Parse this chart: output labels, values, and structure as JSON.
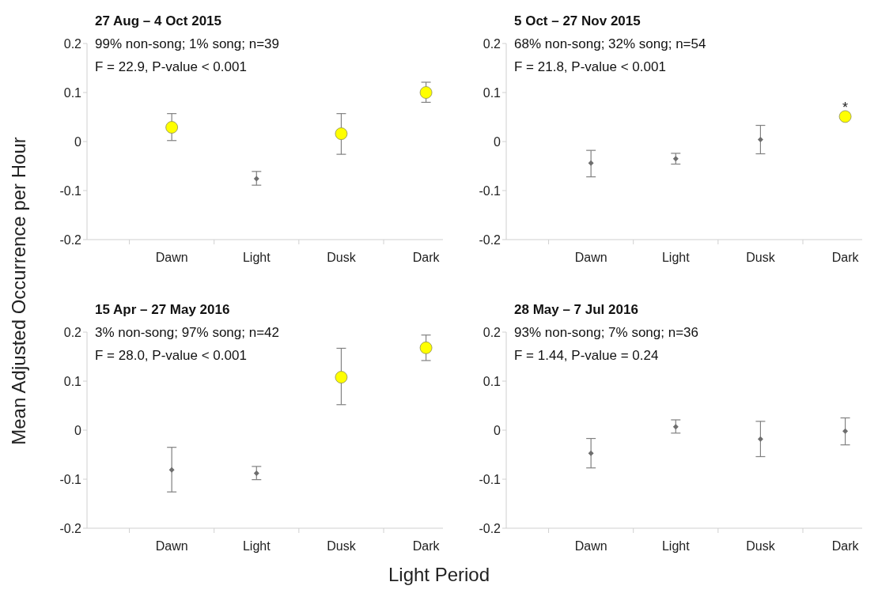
{
  "chart_data": [
    {
      "type": "scatter",
      "title": "27 Aug – 4 Oct 2015",
      "subtitle": "99% non-song; 1% song; n=39",
      "annotations": [
        "F = 22.9, P-value < 0.001"
      ],
      "ylabel": "Mean Adjusted Occurrence per Hour",
      "categories": [
        "Dawn",
        "Light",
        "Dusk",
        "Dark"
      ],
      "ylim": [
        -0.2,
        0.2
      ],
      "yticks": [
        -0.2,
        -0.1,
        0,
        0.1,
        0.2
      ],
      "grid": false,
      "legend": false,
      "series": [
        {
          "color": "#ffff00",
          "marker": "circle",
          "values": [
            0.029,
            null,
            0.016,
            0.1
          ],
          "errors": [
            [
              0.002,
              0.057
            ],
            null,
            [
              -0.026,
              0.057
            ],
            [
              0.08,
              0.121
            ]
          ]
        },
        {
          "color": "#6e6e6e",
          "marker": "diamond",
          "values": [
            null,
            -0.076,
            null,
            null
          ],
          "errors": [
            null,
            [
              -0.089,
              -0.061
            ],
            null,
            null
          ]
        }
      ]
    },
    {
      "type": "scatter",
      "title": "5 Oct – 27 Nov 2015",
      "subtitle": "68% non-song; 32% song; n=54",
      "annotations": [
        "F = 21.8, P-value < 0.001",
        {
          "text": "*",
          "x": "Dark",
          "y": 0.07
        }
      ],
      "categories": [
        "Dawn",
        "Light",
        "Dusk",
        "Dark"
      ],
      "ylim": [
        -0.2,
        0.2
      ],
      "yticks": [
        -0.2,
        -0.1,
        0,
        0.1,
        0.2
      ],
      "grid": false,
      "legend": false,
      "series": [
        {
          "color": "#ffff00",
          "marker": "circle",
          "values": [
            null,
            null,
            null,
            0.051
          ],
          "errors": [
            null,
            null,
            null,
            null
          ]
        },
        {
          "color": "#6e6e6e",
          "marker": "diamond",
          "values": [
            -0.044,
            -0.035,
            0.004,
            null
          ],
          "errors": [
            [
              -0.072,
              -0.018
            ],
            [
              -0.046,
              -0.024
            ],
            [
              -0.025,
              0.033
            ],
            null
          ]
        }
      ]
    },
    {
      "type": "scatter",
      "title": "15 Apr – 27 May 2016",
      "subtitle": "3% non-song; 97% song; n=42",
      "annotations": [
        "F = 28.0, P-value < 0.001"
      ],
      "xlabel": "Light Period",
      "categories": [
        "Dawn",
        "Light",
        "Dusk",
        "Dark"
      ],
      "ylim": [
        -0.2,
        0.2
      ],
      "yticks": [
        -0.2,
        -0.1,
        0,
        0.1,
        0.2
      ],
      "grid": false,
      "legend": false,
      "series": [
        {
          "color": "#ffff00",
          "marker": "circle",
          "values": [
            null,
            null,
            0.108,
            0.168
          ],
          "errors": [
            null,
            null,
            [
              0.052,
              0.167
            ],
            [
              0.142,
              0.194
            ]
          ]
        },
        {
          "color": "#6e6e6e",
          "marker": "diamond",
          "values": [
            -0.081,
            -0.088,
            null,
            null
          ],
          "errors": [
            [
              -0.126,
              -0.035
            ],
            [
              -0.101,
              -0.074
            ],
            null,
            null
          ]
        }
      ]
    },
    {
      "type": "scatter",
      "title": "28 May – 7 Jul 2016",
      "subtitle": "93% non-song; 7% song; n=36",
      "annotations": [
        "F = 1.44, P-value = 0.24"
      ],
      "categories": [
        "Dawn",
        "Light",
        "Dusk",
        "Dark"
      ],
      "ylim": [
        -0.2,
        0.2
      ],
      "yticks": [
        -0.2,
        -0.1,
        0,
        0.1,
        0.2
      ],
      "grid": false,
      "legend": false,
      "series": [
        {
          "color": "#6e6e6e",
          "marker": "diamond",
          "values": [
            -0.047,
            0.007,
            -0.018,
            -0.002
          ],
          "errors": [
            [
              -0.077,
              -0.017
            ],
            [
              -0.006,
              0.021
            ],
            [
              -0.054,
              0.018
            ],
            [
              -0.03,
              0.025
            ]
          ]
        }
      ]
    }
  ]
}
